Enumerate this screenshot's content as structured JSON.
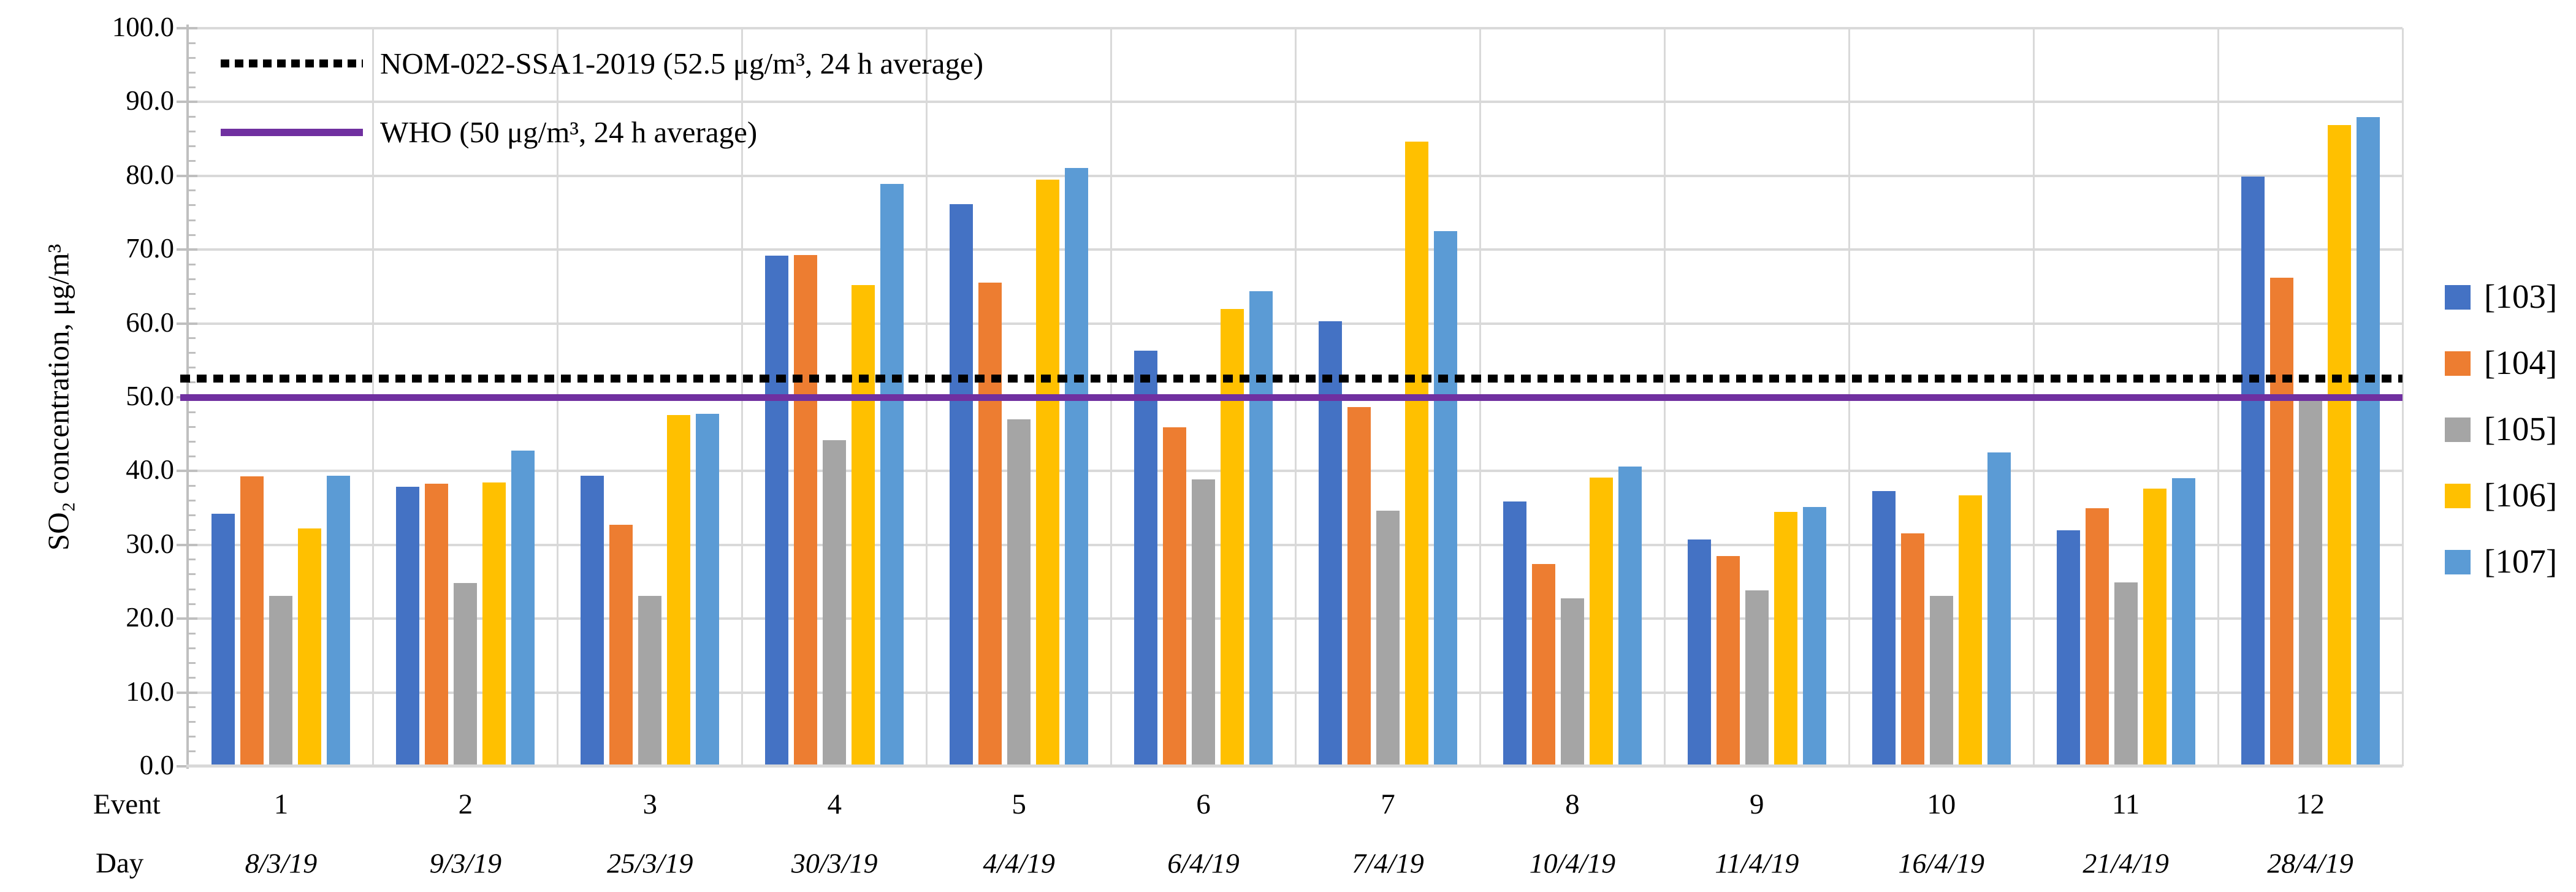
{
  "chart_data": {
    "type": "bar",
    "title": "",
    "ylabel": "SO₂ concentration, μg/m³",
    "ylim": [
      0,
      100
    ],
    "ytick_step": 10,
    "ytick_labels": [
      "0.0",
      "10.0",
      "20.0",
      "30.0",
      "40.0",
      "50.0",
      "60.0",
      "70.0",
      "80.0",
      "90.0",
      "100.0"
    ],
    "grid": "horizontal-and-category-separators",
    "x_row_headers": {
      "event": "Event",
      "day": "Day"
    },
    "categories": [
      {
        "event": "1",
        "day": "8/3/19"
      },
      {
        "event": "2",
        "day": "9/3/19"
      },
      {
        "event": "3",
        "day": "25/3/19"
      },
      {
        "event": "4",
        "day": "30/3/19"
      },
      {
        "event": "5",
        "day": "4/4/19"
      },
      {
        "event": "6",
        "day": "6/4/19"
      },
      {
        "event": "7",
        "day": "7/4/19"
      },
      {
        "event": "8",
        "day": "10/4/19"
      },
      {
        "event": "9",
        "day": "11/4/19"
      },
      {
        "event": "10",
        "day": "16/4/19"
      },
      {
        "event": "11",
        "day": "21/4/19"
      },
      {
        "event": "12",
        "day": "28/4/19"
      }
    ],
    "series": [
      {
        "name": "[103]",
        "color": "#4472C4",
        "values": [
          34.2,
          37.9,
          39.4,
          69.2,
          76.2,
          56.3,
          60.3,
          35.9,
          30.7,
          37.3,
          32.0,
          79.9
        ]
      },
      {
        "name": "[104]",
        "color": "#ED7D31",
        "values": [
          39.3,
          38.3,
          32.7,
          69.3,
          65.5,
          45.9,
          48.7,
          27.4,
          28.5,
          31.6,
          35.0,
          66.2
        ]
      },
      {
        "name": "[105]",
        "color": "#A5A5A5",
        "values": [
          23.1,
          24.8,
          23.1,
          44.2,
          47.0,
          38.9,
          34.6,
          22.8,
          23.8,
          23.1,
          24.9,
          49.5
        ]
      },
      {
        "name": "[106]",
        "color": "#FFC000",
        "values": [
          32.2,
          38.5,
          47.6,
          65.2,
          79.5,
          62.0,
          84.6,
          39.1,
          34.5,
          36.7,
          37.6,
          86.9
        ]
      },
      {
        "name": "[107]",
        "color": "#5B9BD5",
        "values": [
          39.4,
          42.8,
          47.8,
          78.9,
          81.1,
          64.4,
          72.5,
          40.6,
          35.1,
          42.5,
          39.0,
          88.0
        ]
      }
    ],
    "reference_lines": [
      {
        "label": "NOM-022-SSA1-2019 (52.5 μg/m³, 24 h average)",
        "value": 52.5,
        "style": "dotted",
        "color": "#000000"
      },
      {
        "label": "WHO (50 μg/m³, 24 h average)",
        "value": 50,
        "style": "solid",
        "color": "#7030A0"
      }
    ],
    "legend_position": "right",
    "colors": {
      "gridline": "#D9D9D9",
      "axis": "#BFBFBF",
      "background": "#FFFFFF"
    }
  }
}
